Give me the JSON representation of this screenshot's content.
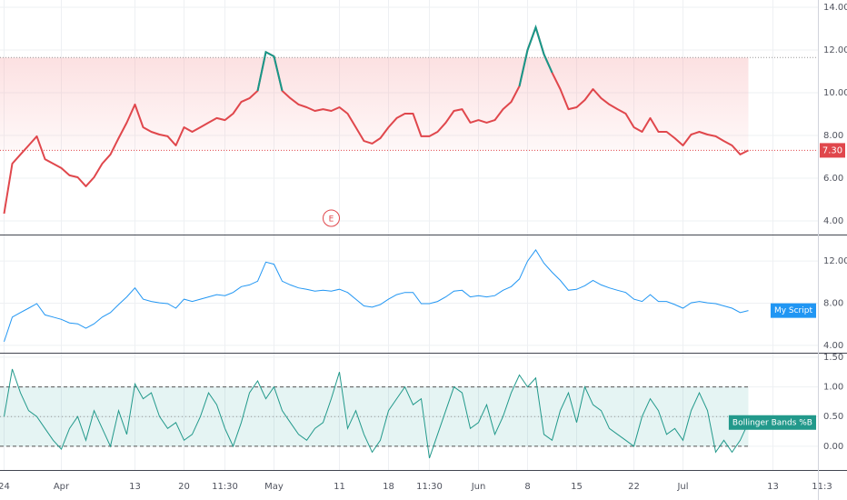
{
  "x_axis": {
    "x": [
      0,
      1,
      2,
      3,
      4,
      5,
      6,
      7,
      8,
      9,
      10,
      11,
      12,
      13,
      14,
      15,
      16,
      17,
      18,
      19,
      20,
      21,
      22,
      23,
      24,
      25,
      26,
      27,
      28,
      29,
      30,
      31,
      32,
      33,
      34,
      35,
      36,
      37,
      38,
      39,
      40,
      41,
      42,
      43,
      44,
      45,
      46,
      47,
      48,
      49,
      50,
      51,
      52,
      53,
      54,
      55,
      56,
      57,
      58,
      59,
      60,
      61,
      62,
      63,
      64,
      65,
      66,
      67,
      68,
      69,
      70,
      71,
      72,
      73,
      74,
      75,
      76,
      77,
      78,
      79,
      80,
      81,
      82,
      83,
      84,
      85,
      86,
      87,
      88,
      89,
      90,
      91
    ],
    "xlim": [
      -0.5,
      99.5
    ],
    "xticks": [
      {
        "value": 0,
        "label": "24"
      },
      {
        "value": 7,
        "label": "Apr"
      },
      {
        "value": 16,
        "label": "13"
      },
      {
        "value": 22,
        "label": "20"
      },
      {
        "value": 27,
        "label": "11:30"
      },
      {
        "value": 33,
        "label": "May"
      },
      {
        "value": 41,
        "label": "11"
      },
      {
        "value": 47,
        "label": "18"
      },
      {
        "value": 52,
        "label": "11:30"
      },
      {
        "value": 58,
        "label": "Jun"
      },
      {
        "value": 64,
        "label": "8"
      },
      {
        "value": 70,
        "label": "15"
      },
      {
        "value": 77,
        "label": "22"
      },
      {
        "value": 83,
        "label": "Jul"
      },
      {
        "value": 94,
        "label": "13"
      },
      {
        "value": 100,
        "label": "11:3"
      }
    ]
  },
  "chart_data": [
    {
      "type": "line",
      "ylim": [
        3.36,
        14.34
      ],
      "yticks": [
        {
          "value": 4,
          "label": "4.00"
        },
        {
          "value": 6,
          "label": "6.00"
        },
        {
          "value": 8,
          "label": "8.00"
        },
        {
          "value": 10,
          "label": "10.00"
        },
        {
          "value": 12,
          "label": "12.00"
        },
        {
          "value": 14,
          "label": "14.00"
        }
      ],
      "grid": true,
      "color": "#e0474c",
      "color_above": "#16998a",
      "fill_color": "#f7a8ab",
      "upper_line": 11.65,
      "price_line": {
        "value": 7.3,
        "label": "7.30"
      },
      "events": [
        {
          "x": 40,
          "label": "E"
        }
      ],
      "values": [
        4.34,
        6.68,
        7.11,
        7.53,
        7.96,
        6.89,
        6.68,
        6.47,
        6.13,
        6.04,
        5.62,
        6.04,
        6.68,
        7.11,
        7.87,
        8.6,
        9.45,
        8.38,
        8.17,
        8.04,
        7.96,
        7.53,
        8.38,
        8.17,
        8.38,
        8.6,
        8.81,
        8.72,
        9.02,
        9.57,
        9.74,
        10.09,
        11.9,
        11.7,
        10.09,
        9.74,
        9.45,
        9.32,
        9.15,
        9.23,
        9.15,
        9.32,
        9.02,
        8.38,
        7.74,
        7.62,
        7.87,
        8.38,
        8.81,
        9.02,
        9.02,
        7.96,
        7.96,
        8.17,
        8.6,
        9.15,
        9.23,
        8.6,
        8.72,
        8.6,
        8.72,
        9.23,
        9.57,
        10.3,
        12.0,
        13.06,
        11.8,
        10.94,
        10.17,
        9.23,
        9.32,
        9.66,
        10.17,
        9.74,
        9.45,
        9.23,
        9.02,
        8.38,
        8.17,
        8.81,
        8.17,
        8.17,
        7.87,
        7.53,
        8.04,
        8.17,
        8.04,
        7.96,
        7.74,
        7.53,
        7.11,
        7.3
      ]
    },
    {
      "type": "line",
      "ylim": [
        3.3,
        14.43
      ],
      "yticks": [
        {
          "value": 4,
          "label": "4.00"
        },
        {
          "value": 8,
          "label": "8.00"
        },
        {
          "value": 12,
          "label": "12.00"
        }
      ],
      "grid": true,
      "series": [
        {
          "name": "My Script",
          "color": "#2196f3",
          "values": [
            4.34,
            6.68,
            7.11,
            7.53,
            7.96,
            6.89,
            6.68,
            6.47,
            6.13,
            6.04,
            5.62,
            6.04,
            6.68,
            7.11,
            7.87,
            8.6,
            9.45,
            8.38,
            8.17,
            8.04,
            7.96,
            7.53,
            8.38,
            8.17,
            8.38,
            8.6,
            8.81,
            8.72,
            9.02,
            9.57,
            9.74,
            10.09,
            11.9,
            11.7,
            10.09,
            9.74,
            9.45,
            9.32,
            9.15,
            9.23,
            9.15,
            9.32,
            9.02,
            8.38,
            7.74,
            7.62,
            7.87,
            8.38,
            8.81,
            9.02,
            9.02,
            7.96,
            7.96,
            8.17,
            8.6,
            9.15,
            9.23,
            8.6,
            8.72,
            8.6,
            8.72,
            9.23,
            9.57,
            10.3,
            12.0,
            13.06,
            11.8,
            10.94,
            10.17,
            9.23,
            9.32,
            9.66,
            10.17,
            9.74,
            9.45,
            9.23,
            9.02,
            8.38,
            8.17,
            8.81,
            8.17,
            8.17,
            7.87,
            7.53,
            8.04,
            8.17,
            8.04,
            7.96,
            7.74,
            7.53,
            7.11,
            7.3
          ]
        }
      ]
    },
    {
      "type": "line",
      "ylim": [
        -0.4,
        1.56
      ],
      "yticks": [
        {
          "value": 0,
          "label": "0.00"
        },
        {
          "value": 0.5,
          "label": "0.50"
        },
        {
          "value": 1,
          "label": "1.00"
        },
        {
          "value": 1.5,
          "label": "1.50"
        }
      ],
      "grid": true,
      "band": [
        0,
        1
      ],
      "band_color": "#26a69a",
      "midline": 0.5,
      "series": [
        {
          "name": "Bollinger Bands %B",
          "color": "#22998b",
          "values": [
            0.5,
            1.3,
            0.9,
            0.6,
            0.5,
            0.3,
            0.1,
            -0.05,
            0.3,
            0.5,
            0.1,
            0.6,
            0.3,
            0.0,
            0.6,
            0.2,
            1.05,
            0.8,
            0.9,
            0.5,
            0.3,
            0.4,
            0.1,
            0.2,
            0.5,
            0.9,
            0.7,
            0.3,
            0.0,
            0.4,
            0.9,
            1.1,
            0.8,
            1.0,
            0.6,
            0.4,
            0.2,
            0.1,
            0.3,
            0.4,
            0.8,
            1.25,
            0.3,
            0.6,
            0.2,
            -0.1,
            0.1,
            0.6,
            0.8,
            1.0,
            0.7,
            0.8,
            -0.2,
            0.2,
            0.6,
            1.0,
            0.9,
            0.3,
            0.4,
            0.7,
            0.2,
            0.5,
            0.9,
            1.2,
            1.0,
            1.15,
            0.2,
            0.1,
            0.6,
            0.9,
            0.4,
            1.0,
            0.7,
            0.6,
            0.3,
            0.2,
            0.1,
            0.0,
            0.5,
            0.8,
            0.6,
            0.2,
            0.3,
            0.1,
            0.6,
            0.9,
            0.6,
            -0.1,
            0.1,
            -0.1,
            0.1,
            0.4
          ]
        }
      ]
    }
  ]
}
